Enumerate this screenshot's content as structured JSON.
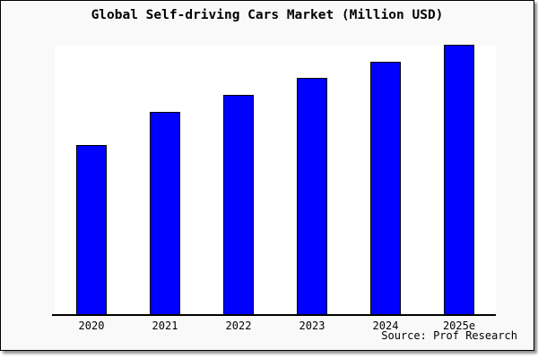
{
  "card": {
    "title": "Global Self-driving Cars Market (Million USD)",
    "source_label": "Source: Prof Research"
  },
  "colors": {
    "bar_fill": "#0000ff",
    "bar_border": "#000000",
    "card_background": "#f9f9f9",
    "plot_background": "#ffffff",
    "axis_line": "#000000",
    "text": "#000000"
  },
  "chart_data": {
    "type": "bar",
    "title": "Global Self-driving Cars Market (Million USD)",
    "categories": [
      "2020",
      "2021",
      "2022",
      "2023",
      "2024",
      "2025e"
    ],
    "values": [
      62.7,
      75.0,
      81.3,
      87.7,
      93.7,
      100.0
    ],
    "values_note": "no y-axis shown; values estimated as percent of tallest bar",
    "xlabel": "",
    "ylabel": "",
    "ylim": [
      0,
      100
    ],
    "grid": false,
    "legend": false,
    "y_axis_visible": false,
    "annotation": "Source: Prof Research"
  }
}
